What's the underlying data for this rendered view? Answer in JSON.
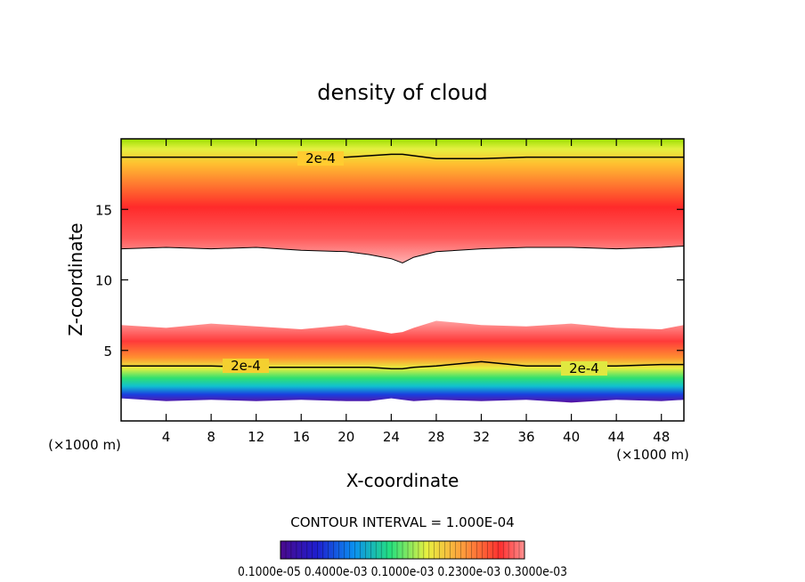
{
  "chart_data": {
    "type": "heatmap",
    "title": "density of cloud",
    "xlabel": "X-coordinate",
    "ylabel": "Z-coordinate",
    "x_unit": "(×1000 m)",
    "y_unit": "(×1000 m)",
    "xlim": [
      0,
      50
    ],
    "ylim": [
      0,
      20
    ],
    "x_ticks": [
      4,
      8,
      12,
      16,
      20,
      24,
      28,
      32,
      36,
      40,
      44,
      48
    ],
    "y_ticks": [
      5,
      10,
      15
    ],
    "contour_interval_text": "CONTOUR INTERVAL = 1.000E-04",
    "contour_labels": [
      "2e-4",
      "2e-4",
      "2e-4"
    ],
    "colorbar_tick_text": "0.1000e-05 0.4000e-03 0.1000e-03 0.2300e-03 0.3000e-03",
    "upper_layer": {
      "x": [
        0,
        4,
        8,
        12,
        16,
        20,
        22,
        24,
        25,
        26,
        28,
        32,
        36,
        40,
        44,
        48,
        50
      ],
      "bottom": [
        12.2,
        12.3,
        12.2,
        12.3,
        12.1,
        12.0,
        11.8,
        11.5,
        11.2,
        11.6,
        12.0,
        12.2,
        12.3,
        12.3,
        12.2,
        12.3,
        12.4
      ],
      "peak_z": 15.0,
      "contour_2e-4_z": [
        18.7,
        18.7,
        18.7,
        18.7,
        18.7,
        18.7,
        18.8,
        18.9,
        18.9,
        18.8,
        18.6,
        18.6,
        18.7,
        18.7,
        18.7,
        18.7,
        18.7
      ]
    },
    "lower_layer": {
      "x": [
        0,
        4,
        8,
        12,
        16,
        20,
        22,
        24,
        25,
        26,
        28,
        32,
        36,
        40,
        44,
        48,
        50
      ],
      "top": [
        6.8,
        6.6,
        6.9,
        6.7,
        6.5,
        6.8,
        6.5,
        6.2,
        6.3,
        6.6,
        7.1,
        6.8,
        6.7,
        6.9,
        6.6,
        6.5,
        6.8
      ],
      "base": [
        1.6,
        1.4,
        1.5,
        1.4,
        1.5,
        1.4,
        1.4,
        1.6,
        1.5,
        1.4,
        1.5,
        1.4,
        1.5,
        1.3,
        1.5,
        1.4,
        1.5
      ],
      "contour_2e-4_z": [
        3.9,
        3.9,
        3.9,
        3.8,
        3.8,
        3.8,
        3.8,
        3.7,
        3.7,
        3.8,
        3.9,
        4.2,
        3.9,
        3.9,
        3.9,
        4.0,
        4.0
      ]
    },
    "colorscale": [
      "#4a0a8c",
      "#1e1ecf",
      "#0b8ff0",
      "#25e07e",
      "#e8f040",
      "#ff9a3c",
      "#ff3030",
      "#ffffff"
    ],
    "grid": false
  }
}
